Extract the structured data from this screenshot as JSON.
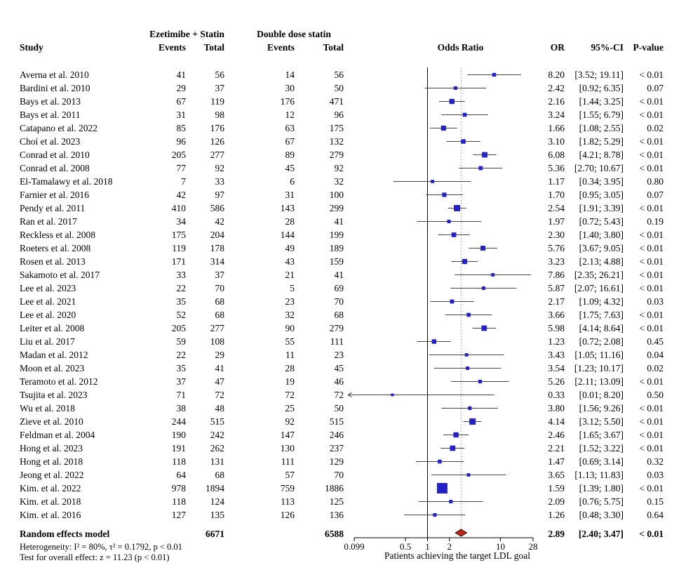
{
  "header": {
    "group1": "Ezetimibe + Statin",
    "group2": "Double dose statin",
    "col_study": "Study",
    "col_events1": "Events",
    "col_total1": "Total",
    "col_events2": "Events",
    "col_total2": "Total",
    "col_plot": "Odds Ratio",
    "col_or": "OR",
    "col_ci": "95%-CI",
    "col_p": "P-value"
  },
  "chart_data": {
    "type": "forest",
    "x_scale": "log",
    "x_min": 0.099,
    "x_max": 28,
    "x_ticks": [
      {
        "value": 0.099,
        "label": "0.099"
      },
      {
        "value": 0.5,
        "label": "0.5"
      },
      {
        "value": 1,
        "label": "1"
      },
      {
        "value": 2,
        "label": "2"
      },
      {
        "value": 10,
        "label": "10"
      },
      {
        "value": 28,
        "label": "28"
      }
    ],
    "x_axis_label": "Patients achieving the target LDL goal",
    "ref_line": 1,
    "marker_color": "#2323C8",
    "ci_color": "#444444",
    "diamond_color": "#C62317",
    "studies": [
      {
        "study": "Averna et al. 2010",
        "e1": 41,
        "n1": 56,
        "e2": 14,
        "n2": 56,
        "or": 8.2,
        "lo": 3.52,
        "hi": 19.11,
        "or_text": "8.20",
        "ci_text": "[3.52; 19.11]",
        "p": "< 0.01"
      },
      {
        "study": "Bardini et al. 2010",
        "e1": 29,
        "n1": 37,
        "e2": 30,
        "n2": 50,
        "or": 2.42,
        "lo": 0.92,
        "hi": 6.35,
        "or_text": "2.42",
        "ci_text": "[0.92; 6.35]",
        "p": "0.07"
      },
      {
        "study": "Bays et al. 2013",
        "e1": 67,
        "n1": 119,
        "e2": 176,
        "n2": 471,
        "or": 2.16,
        "lo": 1.44,
        "hi": 3.25,
        "or_text": "2.16",
        "ci_text": "[1.44; 3.25]",
        "p": "< 0.01"
      },
      {
        "study": "Bays et al. 2011",
        "e1": 31,
        "n1": 98,
        "e2": 12,
        "n2": 96,
        "or": 3.24,
        "lo": 1.55,
        "hi": 6.79,
        "or_text": "3.24",
        "ci_text": "[1.55; 6.79]",
        "p": "< 0.01"
      },
      {
        "study": "Catapano et al. 2022",
        "e1": 85,
        "n1": 176,
        "e2": 63,
        "n2": 175,
        "or": 1.66,
        "lo": 1.08,
        "hi": 2.55,
        "or_text": "1.66",
        "ci_text": "[1.08; 2.55]",
        "p": "0.02"
      },
      {
        "study": "Choi et al. 2023",
        "e1": 96,
        "n1": 126,
        "e2": 67,
        "n2": 132,
        "or": 3.1,
        "lo": 1.82,
        "hi": 5.29,
        "or_text": "3.10",
        "ci_text": "[1.82; 5.29]",
        "p": "< 0.01"
      },
      {
        "study": "Conrad et al. 2010",
        "e1": 205,
        "n1": 277,
        "e2": 89,
        "n2": 279,
        "or": 6.08,
        "lo": 4.21,
        "hi": 8.78,
        "or_text": "6.08",
        "ci_text": "[4.21; 8.78]",
        "p": "< 0.01"
      },
      {
        "study": "Conrad et al. 2008",
        "e1": 77,
        "n1": 92,
        "e2": 45,
        "n2": 92,
        "or": 5.36,
        "lo": 2.7,
        "hi": 10.67,
        "or_text": "5.36",
        "ci_text": "[2.70; 10.67]",
        "p": "< 0.01"
      },
      {
        "study": "El-Tamalawy et al. 2018",
        "e1": 7,
        "n1": 33,
        "e2": 6,
        "n2": 32,
        "or": 1.17,
        "lo": 0.34,
        "hi": 3.95,
        "or_text": "1.17",
        "ci_text": "[0.34; 3.95]",
        "p": "0.80"
      },
      {
        "study": "Farnier et al. 2016",
        "e1": 42,
        "n1": 97,
        "e2": 31,
        "n2": 100,
        "or": 1.7,
        "lo": 0.95,
        "hi": 3.05,
        "or_text": "1.70",
        "ci_text": "[0.95; 3.05]",
        "p": "0.07"
      },
      {
        "study": "Pendy et al. 2011",
        "e1": 410,
        "n1": 586,
        "e2": 143,
        "n2": 299,
        "or": 2.54,
        "lo": 1.91,
        "hi": 3.39,
        "or_text": "2.54",
        "ci_text": "[1.91; 3.39]",
        "p": "< 0.01"
      },
      {
        "study": "Ran et al. 2017",
        "e1": 34,
        "n1": 42,
        "e2": 28,
        "n2": 41,
        "or": 1.97,
        "lo": 0.72,
        "hi": 5.43,
        "or_text": "1.97",
        "ci_text": "[0.72; 5.43]",
        "p": "0.19"
      },
      {
        "study": "Reckless et al. 2008",
        "e1": 175,
        "n1": 204,
        "e2": 144,
        "n2": 199,
        "or": 2.3,
        "lo": 1.4,
        "hi": 3.8,
        "or_text": "2.30",
        "ci_text": "[1.40; 3.80]",
        "p": "< 0.01"
      },
      {
        "study": "Roeters et al. 2008",
        "e1": 119,
        "n1": 178,
        "e2": 49,
        "n2": 189,
        "or": 5.76,
        "lo": 3.67,
        "hi": 9.05,
        "or_text": "5.76",
        "ci_text": "[3.67; 9.05]",
        "p": "< 0.01"
      },
      {
        "study": "Rosen et al. 2013",
        "e1": 171,
        "n1": 314,
        "e2": 43,
        "n2": 159,
        "or": 3.23,
        "lo": 2.13,
        "hi": 4.88,
        "or_text": "3.23",
        "ci_text": "[2.13; 4.88]",
        "p": "< 0.01"
      },
      {
        "study": "Sakamoto et al. 2017",
        "e1": 33,
        "n1": 37,
        "e2": 21,
        "n2": 41,
        "or": 7.86,
        "lo": 2.35,
        "hi": 26.21,
        "or_text": "7.86",
        "ci_text": "[2.35; 26.21]",
        "p": "< 0.01"
      },
      {
        "study": "Lee et al. 2023",
        "e1": 22,
        "n1": 70,
        "e2": 5,
        "n2": 69,
        "or": 5.87,
        "lo": 2.07,
        "hi": 16.61,
        "or_text": "5.87",
        "ci_text": "[2.07; 16.61]",
        "p": "< 0.01"
      },
      {
        "study": "Lee et al. 2021",
        "e1": 35,
        "n1": 68,
        "e2": 23,
        "n2": 70,
        "or": 2.17,
        "lo": 1.09,
        "hi": 4.32,
        "or_text": "2.17",
        "ci_text": "[1.09; 4.32]",
        "p": "0.03"
      },
      {
        "study": "Lee et al. 2020",
        "e1": 52,
        "n1": 68,
        "e2": 32,
        "n2": 68,
        "or": 3.66,
        "lo": 1.75,
        "hi": 7.63,
        "or_text": "3.66",
        "ci_text": "[1.75; 7.63]",
        "p": "< 0.01"
      },
      {
        "study": "Leiter et al. 2008",
        "e1": 205,
        "n1": 277,
        "e2": 90,
        "n2": 279,
        "or": 5.98,
        "lo": 4.14,
        "hi": 8.64,
        "or_text": "5.98",
        "ci_text": "[4.14; 8.64]",
        "p": "< 0.01"
      },
      {
        "study": "Liu et al. 2017",
        "e1": 59,
        "n1": 108,
        "e2": 55,
        "n2": 111,
        "or": 1.23,
        "lo": 0.72,
        "hi": 2.08,
        "or_text": "1.23",
        "ci_text": "[0.72; 2.08]",
        "p": "0.45"
      },
      {
        "study": "Madan et al. 2012",
        "e1": 22,
        "n1": 29,
        "e2": 11,
        "n2": 23,
        "or": 3.43,
        "lo": 1.05,
        "hi": 11.16,
        "or_text": "3.43",
        "ci_text": "[1.05; 11.16]",
        "p": "0.04"
      },
      {
        "study": "Moon et al. 2023",
        "e1": 35,
        "n1": 41,
        "e2": 28,
        "n2": 45,
        "or": 3.54,
        "lo": 1.23,
        "hi": 10.17,
        "or_text": "3.54",
        "ci_text": "[1.23; 10.17]",
        "p": "0.02"
      },
      {
        "study": "Teramoto et al. 2012",
        "e1": 37,
        "n1": 47,
        "e2": 19,
        "n2": 46,
        "or": 5.26,
        "lo": 2.11,
        "hi": 13.09,
        "or_text": "5.26",
        "ci_text": "[2.11; 13.09]",
        "p": "< 0.01"
      },
      {
        "study": "Tsujita et al. 2023",
        "e1": 71,
        "n1": 72,
        "e2": 72,
        "n2": 72,
        "or": 0.33,
        "lo": 0.01,
        "hi": 8.2,
        "or_text": "0.33",
        "ci_text": "[0.01; 8.20]",
        "p": "0.50"
      },
      {
        "study": "Wu et al. 2018",
        "e1": 38,
        "n1": 48,
        "e2": 25,
        "n2": 50,
        "or": 3.8,
        "lo": 1.56,
        "hi": 9.26,
        "or_text": "3.80",
        "ci_text": "[1.56; 9.26]",
        "p": "< 0.01"
      },
      {
        "study": "Zieve et al. 2010",
        "e1": 244,
        "n1": 515,
        "e2": 92,
        "n2": 515,
        "or": 4.14,
        "lo": 3.12,
        "hi": 5.5,
        "or_text": "4.14",
        "ci_text": "[3.12; 5.50]",
        "p": "< 0.01"
      },
      {
        "study": "Feldman et al. 2004",
        "e1": 190,
        "n1": 242,
        "e2": 147,
        "n2": 246,
        "or": 2.46,
        "lo": 1.65,
        "hi": 3.67,
        "or_text": "2.46",
        "ci_text": "[1.65; 3.67]",
        "p": "< 0.01"
      },
      {
        "study": "Hong et al. 2023",
        "e1": 191,
        "n1": 262,
        "e2": 130,
        "n2": 237,
        "or": 2.21,
        "lo": 1.52,
        "hi": 3.22,
        "or_text": "2.21",
        "ci_text": "[1.52; 3.22]",
        "p": "< 0.01"
      },
      {
        "study": "Hong et al. 2018",
        "e1": 118,
        "n1": 131,
        "e2": 111,
        "n2": 129,
        "or": 1.47,
        "lo": 0.69,
        "hi": 3.14,
        "or_text": "1.47",
        "ci_text": "[0.69; 3.14]",
        "p": "0.32"
      },
      {
        "study": "Jeong et al. 2022",
        "e1": 64,
        "n1": 68,
        "e2": 57,
        "n2": 70,
        "or": 3.65,
        "lo": 1.13,
        "hi": 11.83,
        "or_text": "3.65",
        "ci_text": "[1.13; 11.83]",
        "p": "0.03"
      },
      {
        "study": "Kim. et al. 2022",
        "e1": 978,
        "n1": 1894,
        "e2": 759,
        "n2": 1886,
        "or": 1.59,
        "lo": 1.39,
        "hi": 1.8,
        "or_text": "1.59",
        "ci_text": "[1.39; 1.80]",
        "p": "< 0.01"
      },
      {
        "study": "Kim. et al. 2018",
        "e1": 118,
        "n1": 124,
        "e2": 113,
        "n2": 125,
        "or": 2.09,
        "lo": 0.76,
        "hi": 5.75,
        "or_text": "2.09",
        "ci_text": "[0.76; 5.75]",
        "p": "0.15"
      },
      {
        "study": "Kim. et al. 2016",
        "e1": 127,
        "n1": 135,
        "e2": 126,
        "n2": 136,
        "or": 1.26,
        "lo": 0.48,
        "hi": 3.3,
        "or_text": "1.26",
        "ci_text": "[0.48; 3.30]",
        "p": "0.64"
      }
    ],
    "summary": {
      "label": "Random effects model",
      "n1": 6671,
      "n2": 6588,
      "or": 2.89,
      "lo": 2.4,
      "hi": 3.47,
      "or_text": "2.89",
      "ci_text": "[2.40; 3.47]",
      "p": "< 0.01"
    },
    "heterogeneity": "Heterogeneity: I² = 80%, τ² = 0.1792, p < 0.01",
    "overall_test": "Test for overall effect: z = 11.23 (p < 0.01)"
  }
}
